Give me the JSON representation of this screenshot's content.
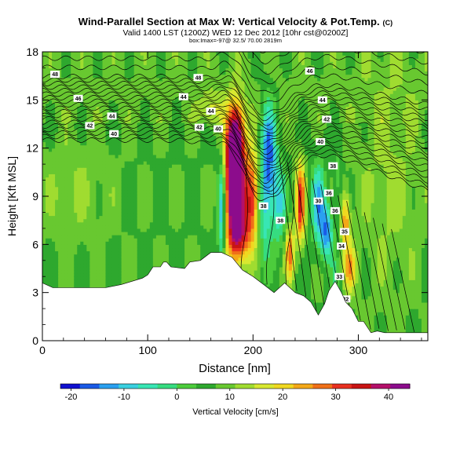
{
  "chart_data": {
    "type": "heatmap",
    "title": "Wind-Parallel Section at Max W: Vertical Velocity & Pot.Temp.",
    "title_mark": "(C)",
    "subtitle": "Valid 1400 LST (1200Z) WED 12 Dec 2012 [10hr cst@0200Z]",
    "subtitle2": "box:Imax=-97@ 32.5/ 70.00 2819m",
    "xlabel": "Distance [nm]",
    "ylabel": "Height [Kft MSL]",
    "xlim": [
      0,
      366
    ],
    "ylim": [
      0,
      18
    ],
    "x_ticks": [
      0,
      100,
      200,
      300
    ],
    "y_ticks": [
      0,
      3,
      6,
      9,
      12,
      15,
      18
    ],
    "colorbar": {
      "label": "Vertical Velocity [cm/s]",
      "ticks": [
        -20,
        -10,
        0,
        10,
        20,
        30,
        40
      ],
      "min": -22,
      "max": 44,
      "colors": [
        "#1010d0",
        "#1a5ae6",
        "#2aa0f0",
        "#3ad0e0",
        "#38e6b4",
        "#36dc80",
        "#4ccc3c",
        "#2ea82e",
        "#68c830",
        "#a0dc30",
        "#d8e830",
        "#f0d820",
        "#f4a818",
        "#f07018",
        "#e83020",
        "#c81414",
        "#b4106a",
        "#8c0c8c"
      ]
    },
    "contour_labels": [
      "48",
      "48",
      "46",
      "46",
      "44",
      "44",
      "44",
      "44",
      "42",
      "42",
      "42",
      "40",
      "40",
      "40",
      "38",
      "38",
      "38",
      "36",
      "36",
      "35",
      "34",
      "33",
      "32",
      "30"
    ],
    "terrain_kft": [
      [
        0,
        3.6
      ],
      [
        10,
        3.3
      ],
      [
        30,
        3.3
      ],
      [
        60,
        3.3
      ],
      [
        75,
        3.5
      ],
      [
        95,
        3.9
      ],
      [
        100,
        4.1
      ],
      [
        105,
        4.6
      ],
      [
        112,
        4.6
      ],
      [
        115,
        4.9
      ],
      [
        118,
        4.9
      ],
      [
        122,
        4.6
      ],
      [
        135,
        4.5
      ],
      [
        140,
        4.9
      ],
      [
        150,
        5.0
      ],
      [
        160,
        5.5
      ],
      [
        170,
        5.5
      ],
      [
        180,
        5.2
      ],
      [
        190,
        4.4
      ],
      [
        200,
        4.0
      ],
      [
        210,
        3.5
      ],
      [
        220,
        3.0
      ],
      [
        230,
        3.6
      ],
      [
        240,
        3.0
      ],
      [
        248,
        2.8
      ],
      [
        255,
        2.4
      ],
      [
        262,
        1.6
      ],
      [
        268,
        2.3
      ],
      [
        272,
        3.1
      ],
      [
        278,
        3.7
      ],
      [
        284,
        3.0
      ],
      [
        288,
        2.4
      ],
      [
        294,
        2.0
      ],
      [
        300,
        1.2
      ],
      [
        305,
        1.2
      ],
      [
        312,
        0.5
      ],
      [
        318,
        0.6
      ],
      [
        325,
        0.5
      ],
      [
        345,
        0.5
      ],
      [
        366,
        0.5
      ]
    ],
    "vv_features": [
      {
        "x": 182,
        "z": 9.5,
        "sx": 6.0,
        "sz": 2.6,
        "w": 43
      },
      {
        "x": 184,
        "z": 12.5,
        "sx": 6.0,
        "sz": 1.6,
        "w": 30
      },
      {
        "x": 199,
        "z": 9.0,
        "sx": 6.0,
        "sz": 2.0,
        "w": 26
      },
      {
        "x": 188,
        "z": 6.5,
        "sx": 7.0,
        "sz": 1.2,
        "w": 18
      },
      {
        "x": 170,
        "z": 8.0,
        "sx": 2.5,
        "sz": 2.4,
        "w": -18
      },
      {
        "x": 215,
        "z": 11.5,
        "sx": 5.0,
        "sz": 2.5,
        "w": -22
      },
      {
        "x": 210,
        "z": 8.0,
        "sx": 4.5,
        "sz": 2.5,
        "w": -12
      },
      {
        "x": 225,
        "z": 8.5,
        "sx": 4.5,
        "sz": 1.8,
        "w": -14
      },
      {
        "x": 245,
        "z": 8.6,
        "sx": 3.0,
        "sz": 1.8,
        "w": 26
      },
      {
        "x": 262,
        "z": 8.5,
        "sx": 4.5,
        "sz": 1.8,
        "w": -18
      },
      {
        "x": 270,
        "z": 6.8,
        "sx": 4.0,
        "sz": 1.2,
        "w": -20
      },
      {
        "x": 280,
        "z": 10.0,
        "sx": 3.0,
        "sz": 1.5,
        "w": -6
      },
      {
        "x": 288,
        "z": 7.5,
        "sx": 3.0,
        "sz": 1.2,
        "w": 18
      },
      {
        "x": 292,
        "z": 4.5,
        "sx": 4.0,
        "sz": 1.0,
        "w": 16
      },
      {
        "x": 278,
        "z": 4.0,
        "sx": 3.0,
        "sz": 0.9,
        "w": -6
      },
      {
        "x": 235,
        "z": 5.5,
        "sx": 3.0,
        "sz": 1.2,
        "w": 20
      },
      {
        "x": 160,
        "z": 14.5,
        "sx": 8.0,
        "sz": 0.8,
        "w": 8
      },
      {
        "x": 330,
        "z": 10.0,
        "sx": 22.0,
        "sz": 5.0,
        "w": 5
      },
      {
        "x": 30,
        "z": 9.5,
        "sx": 25.0,
        "sz": 2.5,
        "w": 4
      }
    ]
  }
}
